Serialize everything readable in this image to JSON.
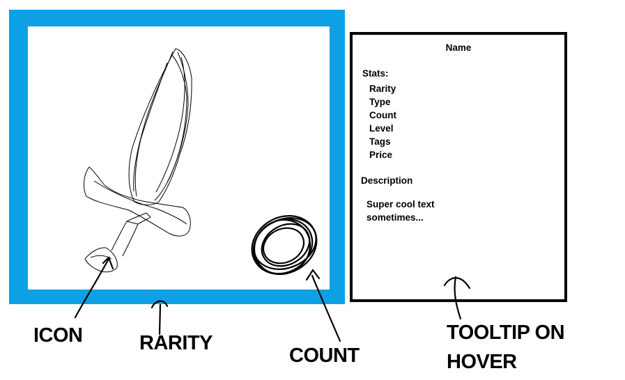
{
  "slot": {
    "frame_color": "#0ea0e4",
    "icon": "sword-icon",
    "count_marker": "count-circle-icon"
  },
  "tooltip": {
    "name": "Name",
    "stats_header": "Stats:",
    "stats": [
      "Rarity",
      "Type",
      "Count",
      "Level",
      "Tags",
      "Price"
    ],
    "description_header": "Description",
    "description_lines": [
      "Super cool text",
      "sometimes..."
    ]
  },
  "annotations": {
    "icon": "ICON",
    "rarity": "RARITY",
    "count": "COUNT",
    "tooltip_line1": "TOOLTIP ON",
    "tooltip_line2": "HOVER"
  }
}
